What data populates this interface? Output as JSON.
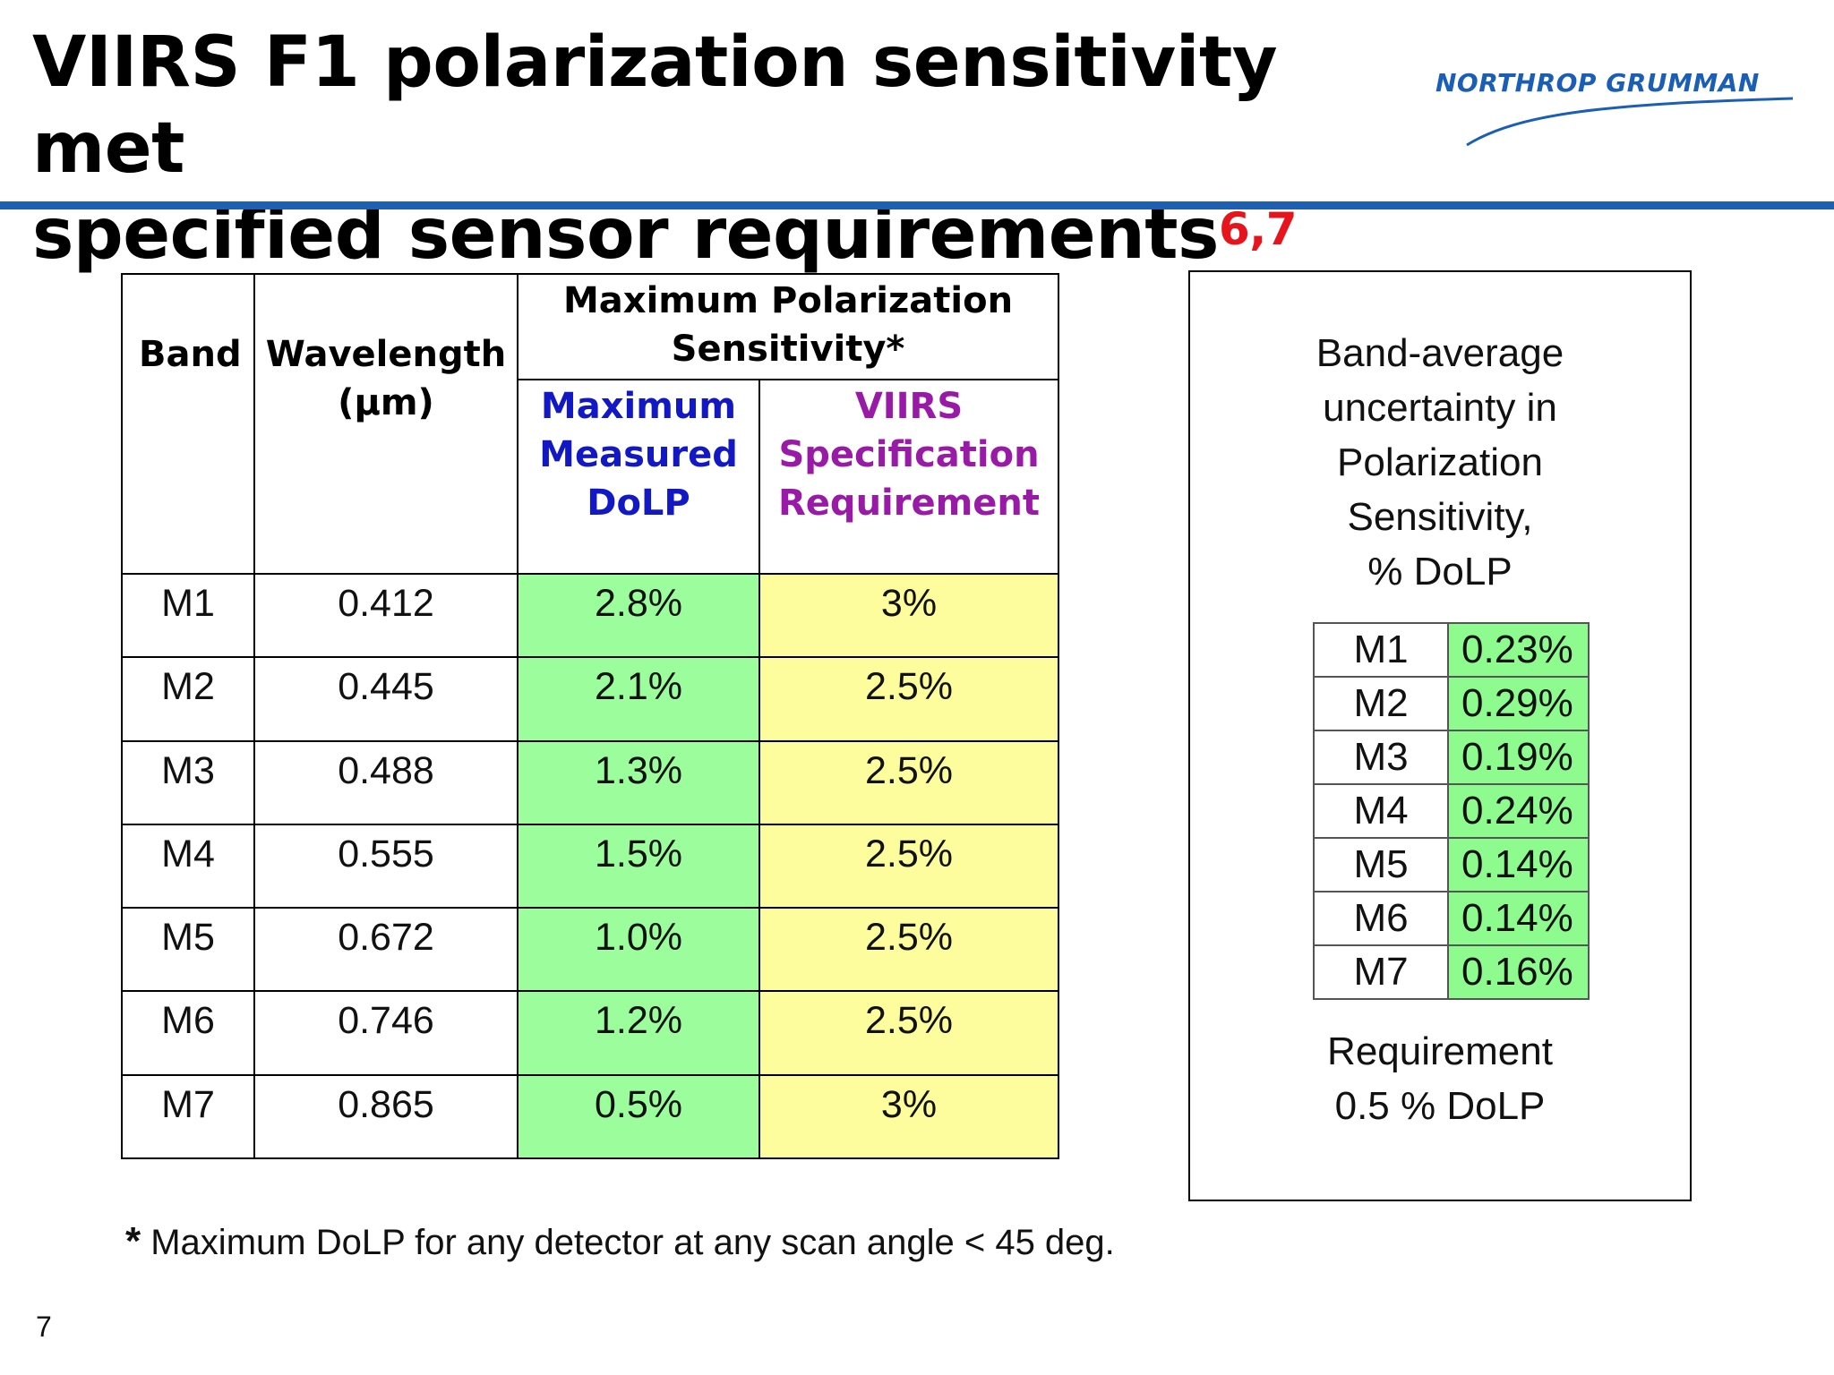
{
  "header": {
    "title_line1": "VIIRS F1 polarization sensitivity met",
    "title_line2": "specified sensor requirements",
    "title_superscript": "6,7",
    "logo_text": "NORTHROP GRUMMAN"
  },
  "main_table": {
    "col_band": "Band",
    "col_wavelength": "Wavelength",
    "col_wavelength_unit": "(µm)",
    "group_header_line1": "Maximum Polarization",
    "group_header_line2": "Sensitivity*",
    "sub_measured": [
      "Maximum",
      "Measured",
      "DoLP"
    ],
    "sub_spec": [
      "VIIRS",
      "Specification",
      "Requirement"
    ],
    "rows": [
      {
        "band": "M1",
        "wavelength": "0.412",
        "measured": "2.8%",
        "spec": "3%"
      },
      {
        "band": "M2",
        "wavelength": "0.445",
        "measured": "2.1%",
        "spec": "2.5%"
      },
      {
        "band": "M3",
        "wavelength": "0.488",
        "measured": "1.3%",
        "spec": "2.5%"
      },
      {
        "band": "M4",
        "wavelength": "0.555",
        "measured": "1.5%",
        "spec": "2.5%"
      },
      {
        "band": "M5",
        "wavelength": "0.672",
        "measured": "1.0%",
        "spec": "2.5%"
      },
      {
        "band": "M6",
        "wavelength": "0.746",
        "measured": "1.2%",
        "spec": "2.5%"
      },
      {
        "band": "M7",
        "wavelength": "0.865",
        "measured": "0.5%",
        "spec": "3%"
      }
    ]
  },
  "side_box": {
    "heading": [
      "Band-average",
      "uncertainty in",
      "Polarization",
      "Sensitivity,",
      "% DoLP"
    ],
    "rows": [
      {
        "band": "M1",
        "value": "0.23%"
      },
      {
        "band": "M2",
        "value": "0.29%"
      },
      {
        "band": "M3",
        "value": "0.19%"
      },
      {
        "band": "M4",
        "value": "0.24%"
      },
      {
        "band": "M5",
        "value": "0.14%"
      },
      {
        "band": "M6",
        "value": "0.14%"
      },
      {
        "band": "M7",
        "value": "0.16%"
      }
    ],
    "requirement": [
      "Requirement",
      "0.5 % DoLP"
    ]
  },
  "footnote": {
    "star": "*",
    "text": " Maximum DoLP for any detector at any scan angle < 45 deg."
  },
  "page_number": "7",
  "colors": {
    "rule": "#1f5fb1",
    "superscript": "#e8141c",
    "measured_fill": "#9bfd9b",
    "spec_fill": "#fdfd9d",
    "side_value_fill": "#8dfb8d",
    "measured_header": "#1219c4",
    "spec_header": "#9a1aa8"
  }
}
